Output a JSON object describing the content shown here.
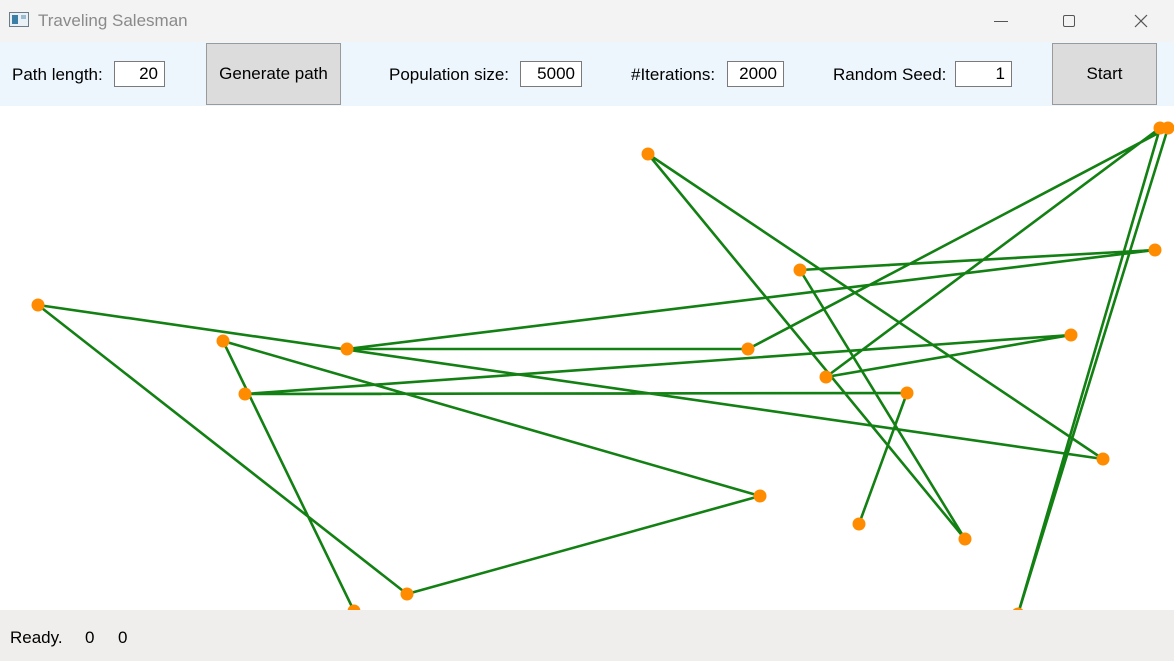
{
  "window": {
    "title": "Traveling Salesman",
    "app_icon": "app-window-icon",
    "controls": [
      "minimize-icon",
      "maximize-icon",
      "close-icon"
    ]
  },
  "toolbar": {
    "path_length_label": "Path length:",
    "path_length_value": "20",
    "generate_button": "Generate path",
    "population_label": "Population size:",
    "population_value": "5000",
    "iterations_label": "#Iterations:",
    "iterations_value": "2000",
    "seed_label": "Random Seed:",
    "seed_value": "1",
    "start_button": "Start"
  },
  "status": {
    "text": "Ready.",
    "value_1": "0",
    "value_2": "0"
  },
  "colors": {
    "path_line": "#138013",
    "city_point": "#ff8c00",
    "toolbar_bg": "#eef6fd",
    "status_bg": "#f0eeed"
  }
}
